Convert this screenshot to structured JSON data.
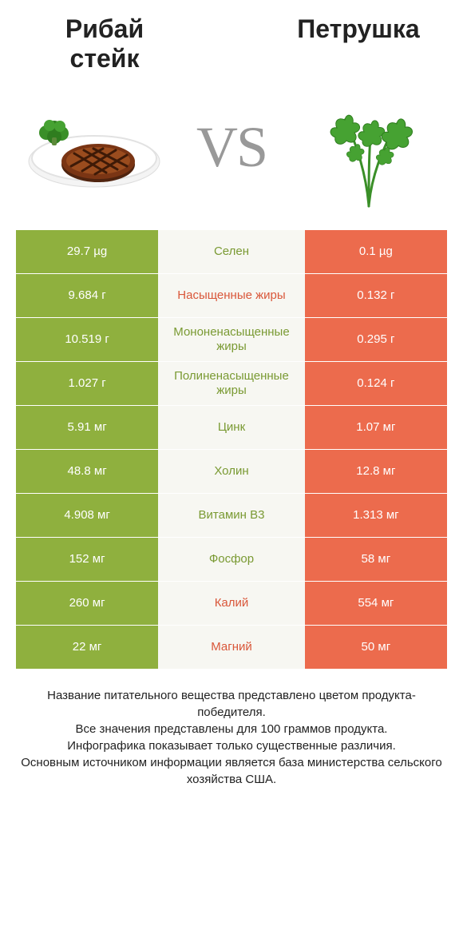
{
  "colors": {
    "left_col": "#8fb03e",
    "right_col": "#ec6b4d",
    "mid_bg": "#f7f7f2",
    "mid_text_win_left": "#7a9a33",
    "mid_text_win_right": "#d9573a",
    "row_separator": "#ffffff"
  },
  "left_product": {
    "title_line1": "Рибай",
    "title_line2": "стейк"
  },
  "right_product": {
    "title": "Петрушка"
  },
  "vs_text": "VS",
  "rows": [
    {
      "left": "29.7 µg",
      "name": "Селен",
      "right": "0.1 µg",
      "winner": "left"
    },
    {
      "left": "9.684 г",
      "name": "Насыщенные жиры",
      "right": "0.132 г",
      "winner": "right"
    },
    {
      "left": "10.519 г",
      "name": "Мононенасыщенные жиры",
      "right": "0.295 г",
      "winner": "left"
    },
    {
      "left": "1.027 г",
      "name": "Полиненасыщенные жиры",
      "right": "0.124 г",
      "winner": "left"
    },
    {
      "left": "5.91 мг",
      "name": "Цинк",
      "right": "1.07 мг",
      "winner": "left"
    },
    {
      "left": "48.8 мг",
      "name": "Холин",
      "right": "12.8 мг",
      "winner": "left"
    },
    {
      "left": "4.908 мг",
      "name": "Витамин B3",
      "right": "1.313 мг",
      "winner": "left"
    },
    {
      "left": "152 мг",
      "name": "Фосфор",
      "right": "58 мг",
      "winner": "left"
    },
    {
      "left": "260 мг",
      "name": "Калий",
      "right": "554 мг",
      "winner": "right"
    },
    {
      "left": "22 мг",
      "name": "Магний",
      "right": "50 мг",
      "winner": "right"
    }
  ],
  "footer_lines": [
    "Название питательного вещества представлено цветом продукта-победителя.",
    "Все значения представлены для 100 граммов продукта.",
    "Инфографика показывает только существенные различия.",
    "Основным источником информации является база министерства сельского хозяйства США."
  ]
}
